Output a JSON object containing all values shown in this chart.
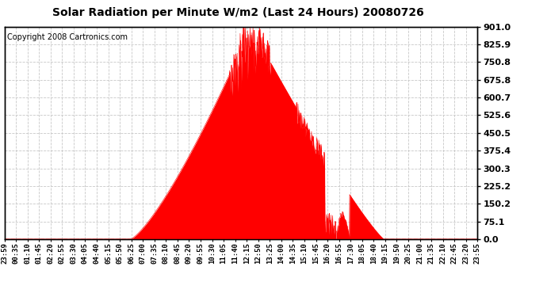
{
  "title": "Solar Radiation per Minute W/m2 (Last 24 Hours) 20080726",
  "copyright_text": "Copyright 2008 Cartronics.com",
  "bg_color": "#ffffff",
  "plot_bg_color": "#ffffff",
  "fill_color": "#ff0000",
  "line_color": "#ff0000",
  "dashed_line_color": "#ff0000",
  "grid_color": "#c8c8c8",
  "y_tick_labels": [
    "0.0",
    "75.1",
    "150.2",
    "225.2",
    "300.3",
    "375.4",
    "450.5",
    "525.6",
    "600.7",
    "675.8",
    "750.8",
    "825.9",
    "901.0"
  ],
  "y_tick_values": [
    0.0,
    75.1,
    150.2,
    225.2,
    300.3,
    375.4,
    450.5,
    525.6,
    600.7,
    675.8,
    750.8,
    825.9,
    901.0
  ],
  "ylim": [
    0.0,
    901.0
  ],
  "x_tick_labels": [
    "23:59",
    "00:35",
    "01:10",
    "01:45",
    "02:20",
    "02:55",
    "03:30",
    "04:05",
    "04:40",
    "05:15",
    "05:50",
    "06:25",
    "07:00",
    "07:35",
    "08:10",
    "08:45",
    "09:20",
    "09:55",
    "10:30",
    "11:05",
    "11:40",
    "12:15",
    "12:50",
    "13:25",
    "14:00",
    "14:35",
    "15:10",
    "15:45",
    "16:20",
    "16:55",
    "17:30",
    "18:05",
    "18:40",
    "19:15",
    "19:50",
    "20:25",
    "21:00",
    "21:35",
    "22:10",
    "22:45",
    "23:20",
    "23:55"
  ],
  "num_points": 1440,
  "sunrise_hour": 6.4,
  "sunset_hour": 19.25,
  "peak_hour": 12.5,
  "peak_value": 901.0,
  "title_fontsize": 10,
  "copyright_fontsize": 7,
  "tick_fontsize": 6.5,
  "ytick_fontsize": 8
}
